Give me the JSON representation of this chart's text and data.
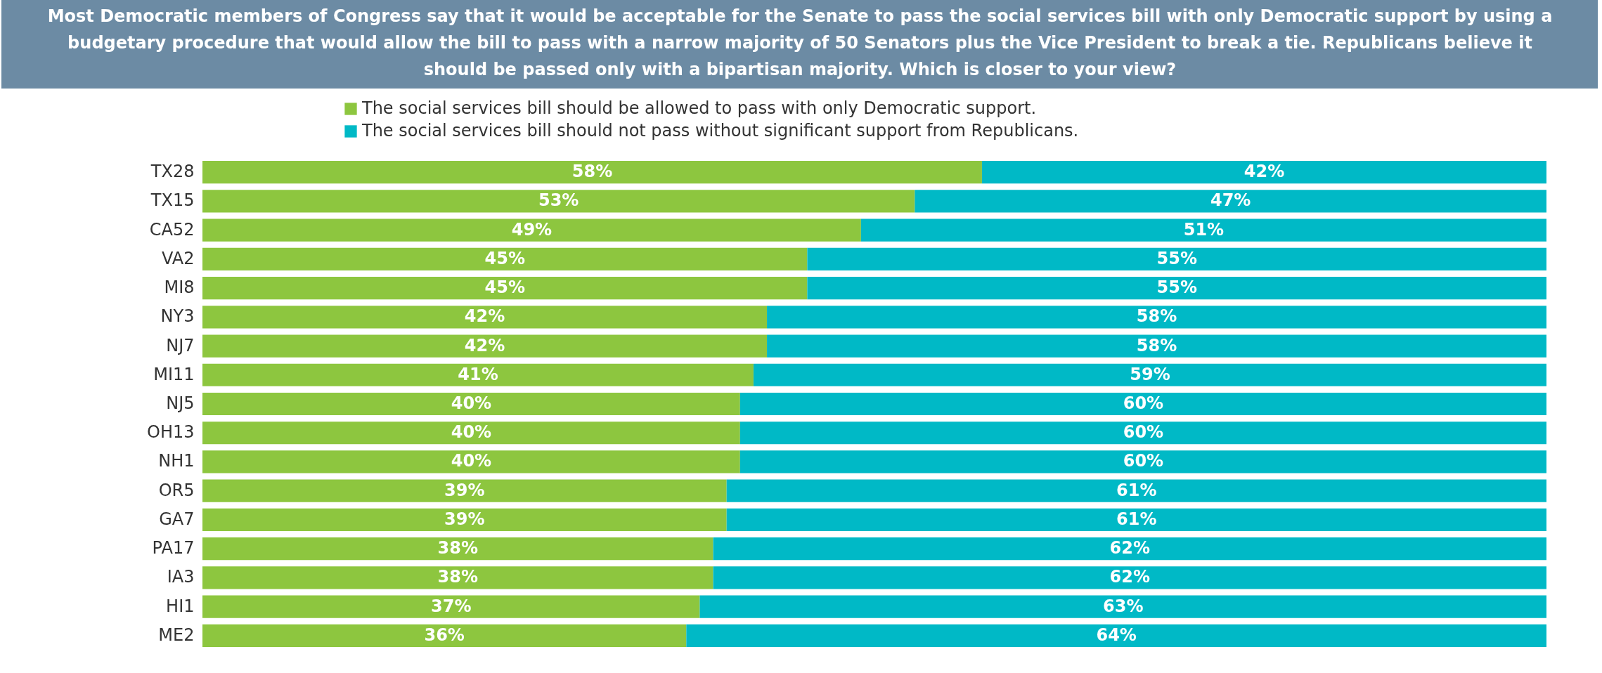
{
  "chart_data": {
    "type": "bar",
    "orientation": "horizontal",
    "stacked": true,
    "title": "Most Democratic members of Congress say that it would be acceptable for the Senate to pass the social services bill with only Democratic support by using a budgetary procedure that would allow the bill to pass with a narrow majority of 50 Senators plus the Vice President to break a tie. Republicans believe it should be passed only with a bipartisan majority.  Which is closer to your view?",
    "categories": [
      "TX28",
      "TX15",
      "CA52",
      "VA2",
      "MI8",
      "NY3",
      "NJ7",
      "MI11",
      "NJ5",
      "OH13",
      "NH1",
      "OR5",
      "GA7",
      "PA17",
      "IA3",
      "HI1",
      "ME2"
    ],
    "series": [
      {
        "name": "The social services bill should be allowed to pass with only Democratic support.",
        "color": "#8dc63f",
        "values": [
          58,
          53,
          49,
          45,
          45,
          42,
          42,
          41,
          40,
          40,
          40,
          39,
          39,
          38,
          38,
          37,
          36
        ],
        "value_labels": [
          "58%",
          "53%",
          "49%",
          "45%",
          "45%",
          "42%",
          "42%",
          "41%",
          "40%",
          "40%",
          "40%",
          "39%",
          "39%",
          "38%",
          "38%",
          "37%",
          "36%"
        ]
      },
      {
        "name": "The social services bill should not pass without significant support from Republicans.",
        "color": "#00b9c6",
        "values": [
          42,
          47,
          51,
          55,
          55,
          58,
          58,
          59,
          60,
          60,
          60,
          61,
          61,
          62,
          62,
          63,
          64
        ],
        "value_labels": [
          "42%",
          "47%",
          "51%",
          "55%",
          "55%",
          "58%",
          "58%",
          "59%",
          "60%",
          "60%",
          "60%",
          "61%",
          "61%",
          "62%",
          "62%",
          "63%",
          "64%"
        ]
      }
    ],
    "xlim": [
      0,
      100
    ],
    "tick_labels": "y",
    "legend": "top"
  }
}
